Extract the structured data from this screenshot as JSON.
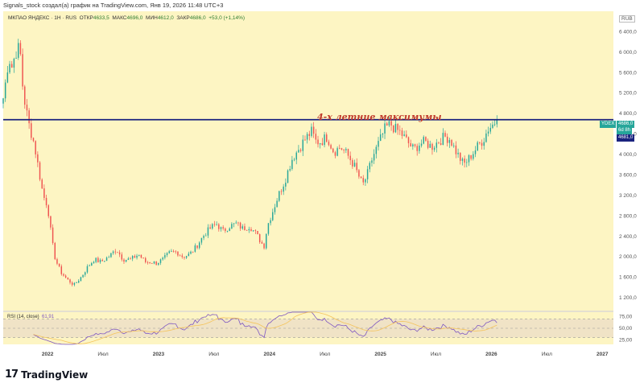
{
  "header": {
    "publish_text": "Signals_stock создал(а) график на TradingView.com, Янв 19, 2026 11:48 UTC+3"
  },
  "legend": {
    "symbol_text": "МКПАО ЯНДЕКС · 1Н · RUS",
    "open_label": "ОТКР",
    "open_value": "4633,5",
    "high_label": "МАКС",
    "high_value": "4696,0",
    "low_label": "МИН",
    "low_value": "4612,0",
    "close_label": "ЗАКР",
    "close_value": "4686,0",
    "change_value": "+53,0 (+1,14%)"
  },
  "rsi_legend": {
    "text": "RSI (14, close)",
    "value": "61,91"
  },
  "annotation": {
    "text": "4-х летние максимумы",
    "color": "#c0392b"
  },
  "currency": "RUB",
  "price_tags": {
    "ticker": "YDEX",
    "last_price": "4686,0",
    "countdown": "6d 8h",
    "level_price": "4681,0"
  },
  "branding": {
    "logo_text": "TradingView"
  },
  "colors": {
    "pane_background": "#fdf5c3",
    "up_candle": "#26a69a",
    "down_candle": "#ef5350",
    "level_line": "#1a237e",
    "rsi_line": "#7e57c2",
    "rsi_ma_line": "#f5c45b",
    "rsi_band": "#e9dcc7"
  },
  "chart_data": [
    {
      "type": "candlestick",
      "title": "МКПАО ЯНДЕКС · 1Н · RUS",
      "x_tick_labels": [
        "2022",
        "Июл",
        "2023",
        "Июл",
        "2024",
        "Июл",
        "2025",
        "Июл",
        "2026",
        "Июл",
        "2027"
      ],
      "x_tick_times": [
        2022.0,
        2022.5,
        2023.0,
        2023.5,
        2024.0,
        2024.5,
        2025.0,
        2025.5,
        2026.0,
        2026.5,
        2027.0
      ],
      "x_range": [
        2021.6,
        2027.1
      ],
      "y_tick_labels": [
        "1 200,0",
        "1 600,0",
        "2 000,0",
        "2 400,0",
        "2 800,0",
        "3 200,0",
        "3 600,0",
        "4 000,0",
        "4 400,0",
        "4 800,0",
        "5 200,0",
        "5 600,0",
        "6 000,0",
        "6 400,0"
      ],
      "y_tick_values": [
        1200,
        1600,
        2000,
        2400,
        2800,
        3200,
        3600,
        4000,
        4400,
        4800,
        5200,
        5600,
        6000,
        6400
      ],
      "ylim": [
        950,
        6800
      ],
      "horizontal_level": 4681,
      "last_price": 4686,
      "anchors": [
        [
          2021.6,
          5100
        ],
        [
          2021.62,
          5400
        ],
        [
          2021.65,
          5900
        ],
        [
          2021.68,
          5700
        ],
        [
          2021.71,
          6000
        ],
        [
          2021.75,
          6100
        ],
        [
          2021.78,
          5200
        ],
        [
          2021.83,
          4600
        ],
        [
          2021.88,
          4200
        ],
        [
          2021.92,
          3700
        ],
        [
          2021.96,
          3200
        ],
        [
          2022.0,
          3000
        ],
        [
          2022.04,
          2300
        ],
        [
          2022.07,
          1950
        ],
        [
          2022.12,
          1700
        ],
        [
          2022.18,
          1550
        ],
        [
          2022.24,
          1450
        ],
        [
          2022.3,
          1600
        ],
        [
          2022.36,
          1800
        ],
        [
          2022.42,
          1950
        ],
        [
          2022.48,
          1900
        ],
        [
          2022.55,
          2000
        ],
        [
          2022.62,
          2150
        ],
        [
          2022.68,
          1950
        ],
        [
          2022.75,
          1950
        ],
        [
          2022.82,
          2050
        ],
        [
          2022.88,
          1900
        ],
        [
          2022.93,
          1900
        ],
        [
          2022.98,
          1880
        ],
        [
          2023.04,
          1950
        ],
        [
          2023.1,
          2080
        ],
        [
          2023.16,
          2100
        ],
        [
          2023.22,
          2000
        ],
        [
          2023.28,
          2050
        ],
        [
          2023.34,
          2200
        ],
        [
          2023.4,
          2400
        ],
        [
          2023.46,
          2550
        ],
        [
          2023.52,
          2650
        ],
        [
          2023.58,
          2500
        ],
        [
          2023.64,
          2600
        ],
        [
          2023.7,
          2650
        ],
        [
          2023.76,
          2550
        ],
        [
          2023.82,
          2600
        ],
        [
          2023.88,
          2450
        ],
        [
          2023.92,
          2300
        ],
        [
          2023.95,
          2200
        ],
        [
          2023.98,
          2600
        ],
        [
          2024.03,
          2900
        ],
        [
          2024.08,
          3200
        ],
        [
          2024.14,
          3500
        ],
        [
          2024.2,
          3900
        ],
        [
          2024.26,
          4100
        ],
        [
          2024.32,
          4300
        ],
        [
          2024.38,
          4450
        ],
        [
          2024.42,
          4250
        ],
        [
          2024.46,
          4250
        ],
        [
          2024.52,
          4350
        ],
        [
          2024.58,
          4050
        ],
        [
          2024.64,
          4150
        ],
        [
          2024.7,
          4000
        ],
        [
          2024.76,
          3800
        ],
        [
          2024.8,
          3600
        ],
        [
          2024.84,
          3400
        ],
        [
          2024.88,
          3600
        ],
        [
          2024.93,
          3950
        ],
        [
          2024.98,
          4200
        ],
        [
          2025.04,
          4500
        ],
        [
          2025.09,
          4600
        ],
        [
          2025.13,
          4500
        ],
        [
          2025.17,
          4450
        ],
        [
          2025.21,
          4350
        ],
        [
          2025.26,
          4200
        ],
        [
          2025.3,
          4100
        ],
        [
          2025.35,
          4200
        ],
        [
          2025.4,
          4250
        ],
        [
          2025.46,
          4150
        ],
        [
          2025.52,
          4250
        ],
        [
          2025.58,
          4350
        ],
        [
          2025.63,
          4300
        ],
        [
          2025.67,
          4100
        ],
        [
          2025.71,
          3950
        ],
        [
          2025.75,
          3800
        ],
        [
          2025.79,
          3900
        ],
        [
          2025.84,
          4050
        ],
        [
          2025.89,
          4200
        ],
        [
          2025.93,
          4300
        ],
        [
          2025.97,
          4500
        ],
        [
          2026.02,
          4600
        ],
        [
          2026.05,
          4686
        ]
      ]
    },
    {
      "type": "line",
      "title": "RSI (14, close)",
      "y_tick_labels": [
        "25,00",
        "50,00",
        "75,00"
      ],
      "y_tick_values": [
        25,
        50,
        75
      ],
      "ylim": [
        15,
        85
      ],
      "band": [
        30,
        70
      ],
      "last_value": 61.91
    }
  ]
}
